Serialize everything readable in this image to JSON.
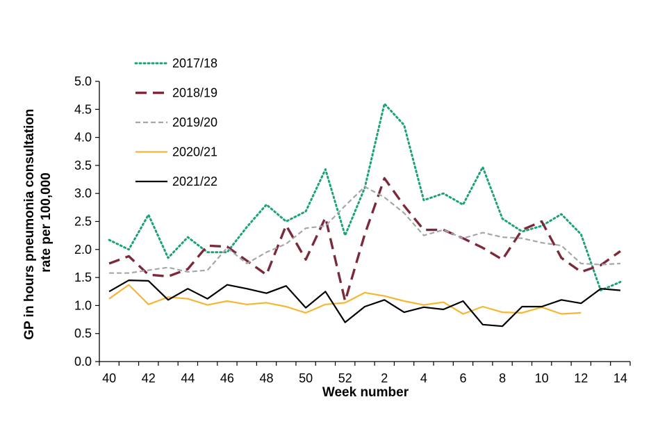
{
  "chart_data": {
    "type": "line",
    "title": "",
    "xlabel": "Week number",
    "ylabel": "GP in hours pneumonia consultation rate per 100,000",
    "ylabel_lines": [
      "GP in hours pneumonia consultation",
      "rate per 100,000"
    ],
    "ylim": [
      0,
      5
    ],
    "yticks": [
      "0.0",
      "0.5",
      "1.0",
      "1.5",
      "2.0",
      "2.5",
      "3.0",
      "3.5",
      "4.0",
      "4.5",
      "5.0"
    ],
    "categories": [
      "40",
      "41",
      "42",
      "43",
      "44",
      "45",
      "46",
      "47",
      "48",
      "49",
      "50",
      "51",
      "52",
      "1",
      "2",
      "3",
      "4",
      "5",
      "6",
      "7",
      "8",
      "9",
      "10",
      "11",
      "12",
      "13",
      "14"
    ],
    "xtick_labels": [
      "40",
      "42",
      "44",
      "46",
      "48",
      "50",
      "52",
      "2",
      "4",
      "6",
      "8",
      "10",
      "12",
      "14"
    ],
    "legend_position": "top-left",
    "series": [
      {
        "name": "2017/18",
        "color": "#1aa37a",
        "style": "dotted",
        "values": [
          2.17,
          2.0,
          2.62,
          1.85,
          2.22,
          1.95,
          1.95,
          2.4,
          2.8,
          2.5,
          2.68,
          3.43,
          2.25,
          3.1,
          4.6,
          4.22,
          2.88,
          3.0,
          2.8,
          3.47,
          2.55,
          2.32,
          2.42,
          2.63,
          2.27,
          1.27,
          1.42
        ]
      },
      {
        "name": "2018/19",
        "color": "#7b2a3a",
        "style": "dashed",
        "values": [
          1.75,
          1.88,
          1.55,
          1.52,
          1.65,
          2.07,
          2.05,
          1.8,
          1.55,
          2.43,
          1.82,
          2.57,
          1.08,
          2.27,
          3.27,
          2.78,
          2.35,
          2.35,
          2.2,
          2.03,
          1.82,
          2.35,
          2.5,
          1.85,
          1.6,
          1.72,
          1.97
        ]
      },
      {
        "name": "2019/20",
        "color": "#a6a6a6",
        "style": "short-dash",
        "values": [
          1.58,
          1.58,
          1.63,
          1.68,
          1.6,
          1.63,
          2.03,
          1.75,
          1.95,
          2.1,
          2.38,
          2.42,
          2.78,
          3.12,
          2.93,
          2.65,
          2.25,
          2.35,
          2.2,
          2.3,
          2.22,
          2.2,
          2.12,
          2.07,
          1.75,
          1.73,
          1.75
        ]
      },
      {
        "name": "2020/21",
        "color": "#f5b731",
        "style": "solid",
        "values": [
          1.12,
          1.37,
          1.02,
          1.15,
          1.12,
          1.01,
          1.08,
          1.02,
          1.05,
          0.98,
          0.87,
          1.02,
          1.05,
          1.23,
          1.17,
          1.08,
          1.01,
          1.06,
          0.85,
          0.98,
          0.88,
          0.87,
          0.97,
          0.85,
          0.87,
          null,
          null
        ]
      },
      {
        "name": "2021/22",
        "color": "#000000",
        "style": "solid",
        "values": [
          1.25,
          1.45,
          1.44,
          1.1,
          1.3,
          1.12,
          1.37,
          1.3,
          1.22,
          1.35,
          0.96,
          1.25,
          0.7,
          0.98,
          1.1,
          0.88,
          0.97,
          0.93,
          1.08,
          0.66,
          0.63,
          0.98,
          0.98,
          1.1,
          1.04,
          1.3,
          1.27
        ]
      }
    ]
  }
}
